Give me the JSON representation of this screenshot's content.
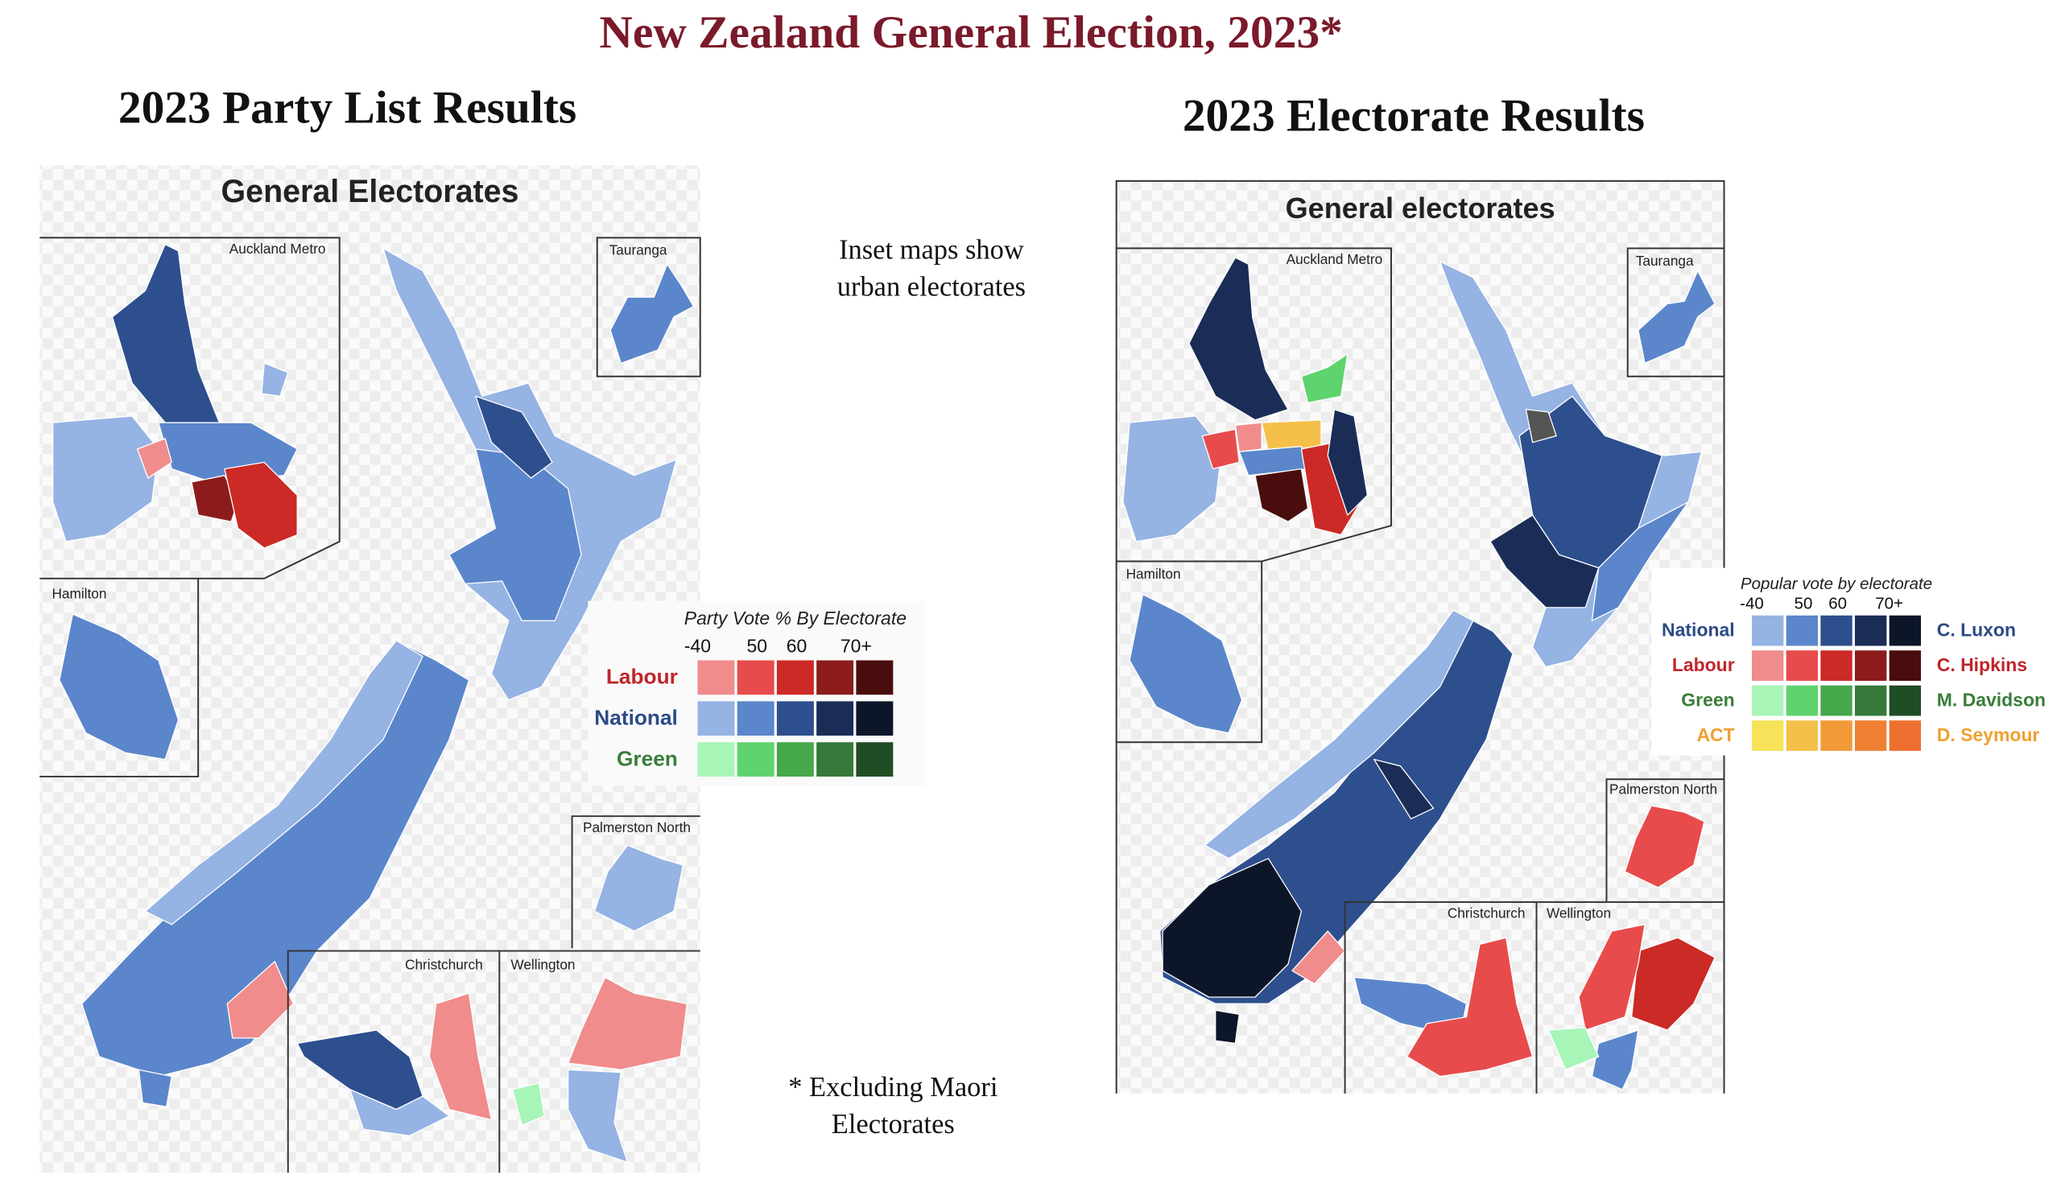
{
  "title": "New Zealand General Election, 2023*",
  "notes": {
    "insets": [
      "Inset maps show",
      "urban electorates"
    ],
    "footnote": [
      "* Excluding Maori",
      "Electorates"
    ]
  },
  "left_map": {
    "heading": "2023 Party List Results",
    "map_title": "General Electorates",
    "insets": [
      "Auckland Metro",
      "Tauranga",
      "Hamilton",
      "Palmerston North",
      "Christchurch",
      "Wellington"
    ],
    "legend": {
      "title": "Party Vote % By Electorate",
      "bins": [
        "-40",
        "50",
        "60",
        "70+"
      ],
      "rows": [
        {
          "party": "Labour",
          "color": "#c0252b",
          "colors": [
            "#f08c8c",
            "#e84b4b",
            "#cc2a26",
            "#8c1c1c",
            "#4a0d0d"
          ]
        },
        {
          "party": "National",
          "color": "#2c4a86",
          "colors": [
            "#95b3e3",
            "#5b86cb",
            "#2e4f8e",
            "#1b2d57",
            "#0d1629"
          ]
        },
        {
          "party": "Green",
          "color": "#3a7d3a",
          "colors": [
            "#a8f5b8",
            "#5fd36e",
            "#45a84a",
            "#357a3a",
            "#1f4d24"
          ]
        }
      ]
    }
  },
  "right_map": {
    "heading": "2023 Electorate Results",
    "map_title": "General electorates",
    "insets": [
      "Auckland Metro",
      "Tauranga",
      "Hamilton",
      "Palmerston North",
      "Christchurch",
      "Wellington"
    ],
    "legend": {
      "title": "Popular vote by electorate",
      "bins": [
        "-40",
        "50",
        "60",
        "70+"
      ],
      "rows": [
        {
          "party": "National",
          "candidate": "C. Luxon",
          "color": "#2c4a86",
          "colors": [
            "#95b3e3",
            "#5b86cb",
            "#2e4f8e",
            "#1b2d57",
            "#0d1629"
          ]
        },
        {
          "party": "Labour",
          "candidate": "C. Hipkins",
          "color": "#c0252b",
          "colors": [
            "#f08c8c",
            "#e84b4b",
            "#cc2a26",
            "#8c1c1c",
            "#4a0d0d"
          ]
        },
        {
          "party": "Green",
          "candidate": "M. Davidson",
          "color": "#3a7d3a",
          "colors": [
            "#a8f5b8",
            "#5fd36e",
            "#45a84a",
            "#357a3a",
            "#1f4d24"
          ]
        },
        {
          "party": "ACT",
          "candidate": "D. Seymour",
          "color": "#f0a030",
          "colors": [
            "#f7e35a",
            "#f5c04a",
            "#f29a38",
            "#ef8032",
            "#ee7030"
          ]
        }
      ]
    }
  }
}
